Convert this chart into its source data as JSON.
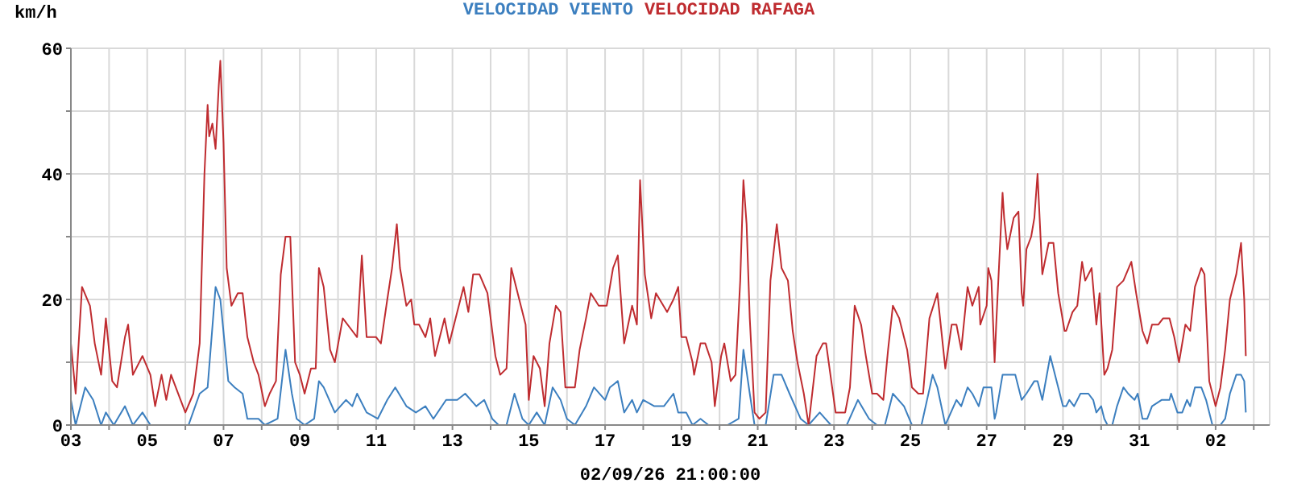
{
  "chart_data": {
    "type": "line",
    "ylabel": "km/h",
    "xlabel": "02/09/26 21:00:00",
    "xlim": [
      "--08-03T00:00",
      "--09-03T10:00"
    ],
    "xticks": [
      {
        "value": "--08-03",
        "label": "03"
      },
      {
        "value": "--08-04",
        "label": null
      },
      {
        "value": "--08-05",
        "label": "05"
      },
      {
        "value": "--08-06",
        "label": null
      },
      {
        "value": "--08-07",
        "label": "07"
      },
      {
        "value": "--08-08",
        "label": null
      },
      {
        "value": "--08-09",
        "label": "09"
      },
      {
        "value": "--08-10",
        "label": null
      },
      {
        "value": "--08-11",
        "label": "11"
      },
      {
        "value": "--08-12",
        "label": null
      },
      {
        "value": "--08-13",
        "label": "13"
      },
      {
        "value": "--08-14",
        "label": null
      },
      {
        "value": "--08-15",
        "label": "15"
      },
      {
        "value": "--08-16",
        "label": null
      },
      {
        "value": "--08-17",
        "label": "17"
      },
      {
        "value": "--08-18",
        "label": null
      },
      {
        "value": "--08-19",
        "label": "19"
      },
      {
        "value": "--08-20",
        "label": null
      },
      {
        "value": "--08-21",
        "label": "21"
      },
      {
        "value": "--08-22",
        "label": null
      },
      {
        "value": "--08-23",
        "label": "23"
      },
      {
        "value": "--08-24",
        "label": null
      },
      {
        "value": "--08-25",
        "label": "25"
      },
      {
        "value": "--08-26",
        "label": null
      },
      {
        "value": "--08-27",
        "label": "27"
      },
      {
        "value": "--08-28",
        "label": null
      },
      {
        "value": "--08-29",
        "label": "29"
      },
      {
        "value": "--08-30",
        "label": null
      },
      {
        "value": "--08-31",
        "label": "31"
      },
      {
        "value": "--09-01",
        "label": null
      },
      {
        "value": "--09-02",
        "label": "02"
      },
      {
        "value": "--09-03",
        "label": null
      }
    ],
    "ylim": [
      0,
      60
    ],
    "yticks": [
      0,
      {
        "value": 10,
        "label": null
      },
      20,
      {
        "value": 30,
        "label": null
      },
      40,
      {
        "value": 50,
        "label": null
      },
      60
    ],
    "grid": true,
    "legend": "top",
    "marker": "none",
    "line_style": "solid",
    "series": [
      {
        "name": "VELOCIDAD VIENTO",
        "color": "#3c7fbf",
        "x": [
          "--08-03T00:00",
          "--08-03T03:00",
          "--08-03T09:00",
          "--08-03T14:00",
          "--08-03T19:00",
          "--08-03T22:00",
          "--08-04T03:00",
          "--08-04T10:00",
          "--08-04T15:00",
          "--08-04T21:00",
          "--08-05T02:00",
          "--08-05T12:00",
          "--08-06T02:00",
          "--08-06T09:00",
          "--08-06T14:00",
          "--08-06T19:00",
          "--08-06T22:00",
          "--08-07T03:00",
          "--08-07T07:00",
          "--08-07T12:00",
          "--08-07T15:00",
          "--08-07T22:00",
          "--08-08T02:00",
          "--08-08T10:00",
          "--08-08T15:00",
          "--08-08T19:00",
          "--08-08T22:00",
          "--08-09T03:00",
          "--08-09T09:00",
          "--08-09T12:00",
          "--08-09T15:00",
          "--08-09T22:00",
          "--08-10T05:00",
          "--08-10T09:00",
          "--08-10T12:00",
          "--08-10T18:00",
          "--08-11T01:00",
          "--08-11T07:00",
          "--08-11T12:00",
          "--08-11T19:00",
          "--08-12T01:00",
          "--08-12T07:00",
          "--08-12T12:00",
          "--08-12T20:00",
          "--08-13T03:00",
          "--08-13T08:00",
          "--08-13T15:00",
          "--08-13T20:00",
          "--08-14T01:00",
          "--08-14T05:00",
          "--08-14T10:00",
          "--08-14T15:00",
          "--08-14T20:00",
          "--08-15T00:00",
          "--08-15T05:00",
          "--08-15T10:00",
          "--08-15T15:00",
          "--08-15T20:00",
          "--08-16T00:00",
          "--08-16T05:00",
          "--08-16T12:00",
          "--08-16T17:00",
          "--08-17T00:00",
          "--08-17T03:00",
          "--08-17T08:00",
          "--08-17T12:00",
          "--08-17T17:00",
          "--08-17T20:00",
          "--08-18T00:00",
          "--08-18T07:00",
          "--08-18T13:00",
          "--08-18T19:00",
          "--08-18T22:00",
          "--08-19T03:00",
          "--08-19T07:00",
          "--08-19T12:00",
          "--08-19T17:00",
          "--08-20T01:00",
          "--08-20T05:00",
          "--08-20T12:00",
          "--08-20T15:00",
          "--08-20T19:00",
          "--08-20T22:00",
          "--08-21T05:00",
          "--08-21T10:00",
          "--08-21T15:00",
          "--08-21T20:00",
          "--08-22T03:00",
          "--08-22T08:00",
          "--08-22T15:00",
          "--08-22T22:00",
          "--08-23T08:00",
          "--08-23T15:00",
          "--08-23T22:00",
          "--08-24T03:00",
          "--08-24T08:00",
          "--08-24T13:00",
          "--08-24T20:00",
          "--08-25T01:00",
          "--08-25T07:00",
          "--08-25T14:00",
          "--08-25T17:00",
          "--08-25T22:00",
          "--08-26T05:00",
          "--08-26T08:00",
          "--08-26T12:00",
          "--08-26T15:00",
          "--08-26T19:00",
          "--08-26T22:00",
          "--08-27T03:00",
          "--08-27T05:00",
          "--08-27T06:00",
          "--08-27T10:00",
          "--08-27T13:00",
          "--08-27T18:00",
          "--08-27T22:00",
          "--08-28T01:00",
          "--08-28T06:00",
          "--08-28T08:00",
          "--08-28T11:00",
          "--08-28T16:00",
          "--08-28T20:00",
          "--08-29T00:00",
          "--08-29T02:00",
          "--08-29T04:00",
          "--08-29T07:00",
          "--08-29T11:00",
          "--08-29T16:00",
          "--08-29T19:00",
          "--08-29T21:00",
          "--08-30T00:00",
          "--08-30T02:00",
          "--08-30T04:00",
          "--08-30T07:00",
          "--08-30T10:00",
          "--08-30T14:00",
          "--08-30T17:00",
          "--08-30T21:00",
          "--08-30T23:00",
          "--08-31T02:00",
          "--08-31T05:00",
          "--08-31T08:00",
          "--08-31T14:00",
          "--08-31T19:00",
          "--08-31T20:00",
          "--09-01T00:00",
          "--09-01T03:00",
          "--09-01T06:00",
          "--09-01T08:00",
          "--09-01T11:00",
          "--09-01T15:00",
          "--09-01T18:00",
          "--09-01T22:00",
          "--09-02T03:00",
          "--09-02T06:00",
          "--09-02T09:00",
          "--09-02T13:00",
          "--09-02T16:00",
          "--09-02T18:00",
          "--09-02T19:00"
        ],
        "values": [
          4,
          0,
          6,
          4,
          0,
          2,
          0,
          3,
          0,
          2,
          0,
          0,
          0,
          5,
          6,
          22,
          20,
          7,
          6,
          5,
          1,
          1,
          0,
          1,
          12,
          5,
          1,
          0,
          1,
          7,
          6,
          2,
          4,
          3,
          5,
          2,
          1,
          4,
          6,
          3,
          2,
          3,
          1,
          4,
          4,
          5,
          3,
          4,
          1,
          0,
          0,
          5,
          1,
          0,
          2,
          0,
          6,
          4,
          1,
          0,
          3,
          6,
          4,
          6,
          7,
          2,
          4,
          2,
          4,
          3,
          3,
          5,
          2,
          2,
          0,
          1,
          0,
          0,
          0,
          1,
          12,
          5,
          0,
          0,
          8,
          8,
          5,
          1,
          0,
          2,
          0,
          0,
          4,
          1,
          0,
          0,
          5,
          3,
          0,
          0,
          8,
          6,
          0,
          4,
          3,
          6,
          5,
          3,
          6,
          6,
          1,
          2,
          8,
          8,
          8,
          4,
          5,
          7,
          7,
          4,
          11,
          7,
          3,
          3,
          4,
          3,
          5,
          5,
          4,
          2,
          3,
          1,
          0,
          0,
          3,
          6,
          5,
          4,
          5,
          1,
          1,
          3,
          4,
          4,
          5,
          2,
          2,
          4,
          3,
          6,
          6,
          4,
          0,
          0,
          1,
          5,
          8,
          8,
          7,
          2
        ]
      },
      {
        "name": "VELOCIDAD RAFAGA",
        "color": "#bf2c30",
        "x": [
          "--08-03T00:00",
          "--08-03T03:00",
          "--08-03T07:00",
          "--08-03T12:00",
          "--08-03T15:00",
          "--08-03T19:00",
          "--08-03T22:00",
          "--08-04T02:00",
          "--08-04T05:00",
          "--08-04T10:00",
          "--08-04T12:00",
          "--08-04T15:00",
          "--08-04T21:00",
          "--08-05T02:00",
          "--08-05T05:00",
          "--08-05T09:00",
          "--08-05T12:00",
          "--08-05T15:00",
          "--08-05T21:00",
          "--08-06T00:00",
          "--08-06T05:00",
          "--08-06T09:00",
          "--08-06T12:00",
          "--08-06T14:00",
          "--08-06T15:00",
          "--08-06T17:00",
          "--08-06T19:00",
          "--08-06T21:00",
          "--08-06T22:00",
          "--08-07T00:00",
          "--08-07T02:00",
          "--08-07T05:00",
          "--08-07T09:00",
          "--08-07T12:00",
          "--08-07T15:00",
          "--08-07T19:00",
          "--08-07T22:00",
          "--08-08T02:00",
          "--08-08T05:00",
          "--08-08T09:00",
          "--08-08T12:00",
          "--08-08T15:00",
          "--08-08T18:00",
          "--08-08T21:00",
          "--08-09T00:00",
          "--08-09T03:00",
          "--08-09T07:00",
          "--08-09T10:00",
          "--08-09T12:00",
          "--08-09T15:00",
          "--08-09T19:00",
          "--08-09T22:00",
          "--08-10T03:00",
          "--08-10T09:00",
          "--08-10T12:00",
          "--08-10T15:00",
          "--08-10T18:00",
          "--08-11T00:00",
          "--08-11T03:00",
          "--08-11T07:00",
          "--08-11T10:00",
          "--08-11T13:00",
          "--08-11T15:00",
          "--08-11T19:00",
          "--08-11T22:00",
          "--08-12T00:00",
          "--08-12T03:00",
          "--08-12T07:00",
          "--08-12T10:00",
          "--08-12T13:00",
          "--08-12T19:00",
          "--08-12T22:00",
          "--08-13T03:00",
          "--08-13T07:00",
          "--08-13T10:00",
          "--08-13T13:00",
          "--08-13T17:00",
          "--08-13T22:00",
          "--08-14T03:00",
          "--08-14T06:00",
          "--08-14T10:00",
          "--08-14T13:00",
          "--08-14T15:00",
          "--08-14T19:00",
          "--08-14T22:00",
          "--08-15T00:00",
          "--08-15T03:00",
          "--08-15T07:00",
          "--08-15T10:00",
          "--08-15T13:00",
          "--08-15T17:00",
          "--08-15T20:00",
          "--08-15T23:00",
          "--08-16T05:00",
          "--08-16T08:00",
          "--08-16T12:00",
          "--08-16T15:00",
          "--08-16T20:00",
          "--08-17T01:00",
          "--08-17T05:00",
          "--08-17T08:00",
          "--08-17T12:00",
          "--08-17T17:00",
          "--08-17T20:00",
          "--08-17T22:00",
          "--08-18T01:00",
          "--08-18T05:00",
          "--08-18T08:00",
          "--08-18T15:00",
          "--08-18T19:00",
          "--08-18T22:00",
          "--08-19T00:00",
          "--08-19T03:00",
          "--08-19T07:00",
          "--08-19T08:00",
          "--08-19T12:00",
          "--08-19T15:00",
          "--08-19T19:00",
          "--08-19T21:00",
          "--08-20T01:00",
          "--08-20T03:00",
          "--08-20T07:00",
          "--08-20T10:00",
          "--08-20T13:00",
          "--08-20T15:00",
          "--08-20T17:00",
          "--08-20T19:00",
          "--08-20T22:00",
          "--08-21T01:00",
          "--08-21T05:00",
          "--08-21T08:00",
          "--08-21T12:00",
          "--08-21T15:00",
          "--08-21T19:00",
          "--08-21T22:00",
          "--08-22T01:00",
          "--08-22T05:00",
          "--08-22T08:00",
          "--08-22T13:00",
          "--08-22T17:00",
          "--08-22T19:00",
          "--08-23T01:00",
          "--08-23T07:00",
          "--08-23T10:00",
          "--08-23T13:00",
          "--08-23T17:00",
          "--08-23T20:00",
          "--08-24T00:00",
          "--08-24T03:00",
          "--08-24T07:00",
          "--08-24T10:00",
          "--08-24T13:00",
          "--08-24T17:00",
          "--08-24T22:00",
          "--08-25T01:00",
          "--08-25T05:00",
          "--08-25T08:00",
          "--08-25T12:00",
          "--08-25T17:00",
          "--08-25T22:00",
          "--08-26T02:00",
          "--08-26T05:00",
          "--08-26T08:00",
          "--08-26T12:00",
          "--08-26T15:00",
          "--08-26T19:00",
          "--08-26T20:00",
          "--08-27T00:00",
          "--08-27T01:00",
          "--08-27T03:00",
          "--08-27T05:00",
          "--08-27T06:00",
          "--08-27T10:00",
          "--08-27T11:00",
          "--08-27T13:00",
          "--08-27T17:00",
          "--08-27T20:00",
          "--08-27T22:00",
          "--08-27T23:00",
          "--08-28T01:00",
          "--08-28T04:00",
          "--08-28T06:00",
          "--08-28T08:00",
          "--08-28T11:00",
          "--08-28T15:00",
          "--08-28T18:00",
          "--08-28T21:00",
          "--08-29T01:00",
          "--08-29T02:00",
          "--08-29T06:00",
          "--08-29T09:00",
          "--08-29T12:00",
          "--08-29T14:00",
          "--08-29T18:00",
          "--08-29T21:00",
          "--08-29T23:00",
          "--08-30T02:00",
          "--08-30T04:00",
          "--08-30T07:00",
          "--08-30T10:00",
          "--08-30T14:00",
          "--08-30T19:00",
          "--08-30T22:00",
          "--08-31T02:00",
          "--08-31T05:00",
          "--08-31T08:00",
          "--08-31T12:00",
          "--08-31T15:00",
          "--08-31T19:00",
          "--08-31T22:00",
          "--09-01T01:00",
          "--09-01T05:00",
          "--09-01T08:00",
          "--09-01T11:00",
          "--09-01T15:00",
          "--09-01T17:00",
          "--09-01T20:00",
          "--09-02T00:00",
          "--09-02T03:00",
          "--09-02T06:00",
          "--09-02T09:00",
          "--09-02T13:00",
          "--09-02T16:00",
          "--09-02T18:00",
          "--09-02T19:00"
        ],
        "values": [
          13,
          5,
          22,
          19,
          13,
          8,
          17,
          7,
          6,
          14,
          16,
          8,
          11,
          8,
          3,
          8,
          4,
          8,
          4,
          2,
          5,
          13,
          40,
          51,
          46,
          48,
          44,
          54,
          58,
          45,
          25,
          19,
          21,
          21,
          14,
          10,
          8,
          3,
          5,
          7,
          24,
          30,
          30,
          10,
          8,
          5,
          9,
          9,
          25,
          22,
          12,
          10,
          17,
          15,
          14,
          27,
          14,
          14,
          13,
          20,
          25,
          32,
          25,
          19,
          20,
          16,
          16,
          14,
          17,
          11,
          17,
          13,
          18,
          22,
          18,
          24,
          24,
          21,
          11,
          8,
          9,
          25,
          23,
          19,
          16,
          4,
          11,
          9,
          3,
          13,
          19,
          18,
          6,
          6,
          12,
          17,
          21,
          19,
          19,
          25,
          27,
          13,
          19,
          16,
          39,
          24,
          17,
          21,
          18,
          20,
          22,
          14,
          14,
          10,
          8,
          13,
          13,
          10,
          3,
          11,
          13,
          7,
          8,
          23,
          39,
          32,
          17,
          2,
          1,
          2,
          23,
          32,
          25,
          23,
          15,
          10,
          5,
          0,
          11,
          13,
          13,
          2,
          2,
          6,
          19,
          16,
          11,
          5,
          5,
          4,
          12,
          19,
          17,
          12,
          6,
          5,
          5,
          17,
          21,
          9,
          16,
          16,
          12,
          22,
          19,
          22,
          16,
          19,
          25,
          23,
          10,
          16,
          37,
          33,
          28,
          33,
          34,
          21,
          19,
          28,
          30,
          33,
          40,
          24,
          29,
          29,
          21,
          15,
          15,
          18,
          19,
          26,
          23,
          25,
          16,
          21,
          8,
          9,
          12,
          22,
          23,
          26,
          21,
          15,
          13,
          16,
          16,
          17,
          17,
          14,
          10,
          16,
          15,
          22,
          25,
          24,
          7,
          3,
          6,
          12,
          20,
          24,
          29,
          20,
          11
        ]
      }
    ]
  }
}
